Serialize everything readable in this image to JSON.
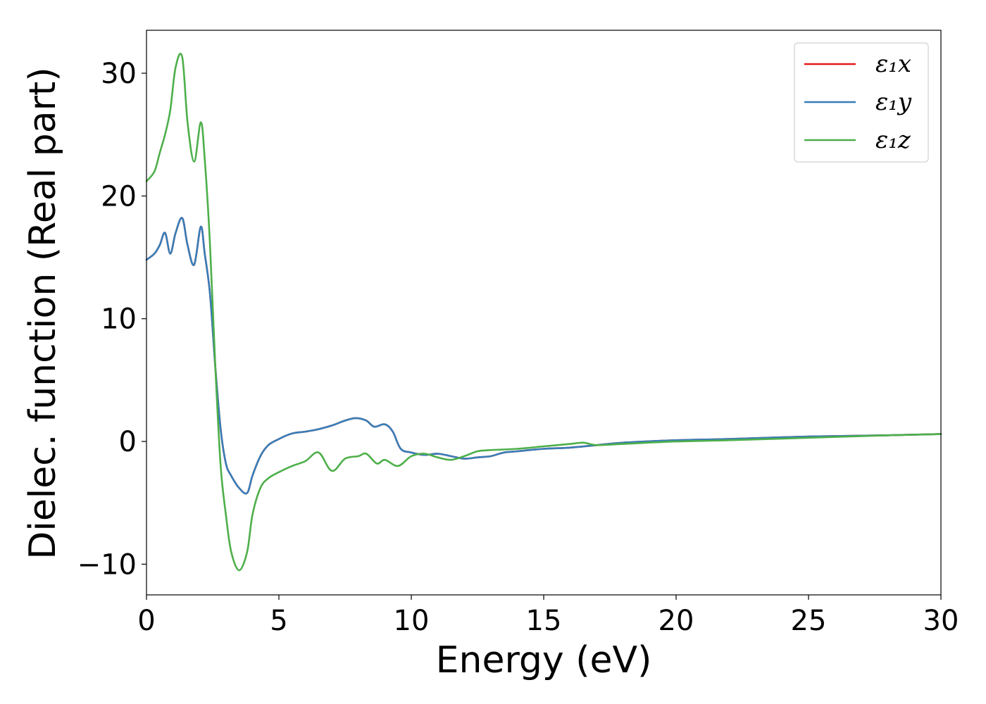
{
  "chart_data": {
    "type": "line",
    "xlabel": "Energy (eV)",
    "ylabel": "Dielec. function (Real part)",
    "xlim": [
      0,
      30
    ],
    "ylim": [
      -12.5,
      33.5
    ],
    "xticks": [
      0,
      5,
      10,
      15,
      20,
      25,
      30
    ],
    "xtick_labels": [
      "0",
      "5",
      "10",
      "15",
      "20",
      "25",
      "30"
    ],
    "yticks": [
      -10,
      0,
      10,
      20,
      30
    ],
    "ytick_labels": [
      "−10",
      "0",
      "10",
      "20",
      "30"
    ],
    "grid": false,
    "legend_position": "top-right",
    "series": [
      {
        "name": "ε₁x",
        "color": "#e41a1c",
        "x": [
          0,
          0.3,
          0.5,
          0.7,
          0.9,
          1.1,
          1.35,
          1.55,
          1.8,
          2.05,
          2.2,
          2.4,
          2.6,
          2.8,
          3.0,
          3.2,
          3.5,
          3.8,
          4.0,
          4.3,
          4.6,
          5.0,
          5.3,
          5.6,
          6.0,
          6.5,
          7.0,
          7.5,
          7.9,
          8.3,
          8.6,
          9.0,
          9.3,
          9.6,
          10.0,
          10.5,
          11.0,
          11.5,
          12.0,
          12.5,
          13.0,
          13.5,
          14.0,
          15.0,
          16.0,
          17.0,
          18.0,
          20.0,
          22.0,
          25.0,
          28.0,
          30.0
        ],
        "y": [
          14.8,
          15.3,
          16.0,
          17.0,
          15.3,
          17.0,
          18.2,
          16.0,
          14.4,
          17.5,
          15.3,
          12.0,
          6.0,
          1.0,
          -1.8,
          -2.8,
          -3.8,
          -4.2,
          -2.8,
          -1.2,
          -0.3,
          0.2,
          0.5,
          0.7,
          0.8,
          1.0,
          1.3,
          1.7,
          1.9,
          1.7,
          1.2,
          1.4,
          0.8,
          -0.6,
          -0.9,
          -1.1,
          -1.0,
          -1.2,
          -1.4,
          -1.3,
          -1.2,
          -0.9,
          -0.8,
          -0.6,
          -0.5,
          -0.3,
          -0.1,
          0.1,
          0.2,
          0.4,
          0.5,
          0.6
        ]
      },
      {
        "name": "ε₁y",
        "color": "#377eb8",
        "x": [
          0,
          0.3,
          0.5,
          0.7,
          0.9,
          1.1,
          1.35,
          1.55,
          1.8,
          2.05,
          2.2,
          2.4,
          2.6,
          2.8,
          3.0,
          3.2,
          3.5,
          3.8,
          4.0,
          4.3,
          4.6,
          5.0,
          5.3,
          5.6,
          6.0,
          6.5,
          7.0,
          7.5,
          7.9,
          8.3,
          8.6,
          9.0,
          9.3,
          9.6,
          10.0,
          10.5,
          11.0,
          11.5,
          12.0,
          12.5,
          13.0,
          13.5,
          14.0,
          15.0,
          16.0,
          17.0,
          18.0,
          20.0,
          22.0,
          25.0,
          28.0,
          30.0
        ],
        "y": [
          14.8,
          15.3,
          16.0,
          17.0,
          15.3,
          17.0,
          18.2,
          16.0,
          14.4,
          17.5,
          15.3,
          12.0,
          6.0,
          1.0,
          -1.8,
          -2.8,
          -3.8,
          -4.2,
          -2.8,
          -1.2,
          -0.3,
          0.2,
          0.5,
          0.7,
          0.8,
          1.0,
          1.3,
          1.7,
          1.9,
          1.7,
          1.2,
          1.4,
          0.8,
          -0.6,
          -0.9,
          -1.1,
          -1.0,
          -1.2,
          -1.4,
          -1.3,
          -1.2,
          -0.9,
          -0.8,
          -0.6,
          -0.5,
          -0.3,
          -0.1,
          0.1,
          0.2,
          0.4,
          0.5,
          0.6
        ]
      },
      {
        "name": "ε₁z",
        "color": "#4daf4a",
        "x": [
          0,
          0.3,
          0.5,
          0.7,
          0.9,
          1.1,
          1.35,
          1.55,
          1.8,
          2.05,
          2.2,
          2.4,
          2.6,
          2.8,
          3.0,
          3.2,
          3.5,
          3.8,
          4.0,
          4.3,
          4.6,
          5.0,
          5.5,
          6.0,
          6.5,
          7.0,
          7.5,
          8.0,
          8.3,
          8.7,
          9.0,
          9.5,
          10.0,
          10.5,
          11.0,
          11.5,
          12.0,
          12.5,
          13.0,
          14.0,
          15.0,
          16.0,
          16.5,
          17.0,
          18.0,
          20.0,
          22.0,
          25.0,
          28.0,
          30.0
        ],
        "y": [
          21.2,
          22.0,
          23.5,
          25.0,
          27.0,
          30.5,
          31.3,
          26.0,
          22.8,
          26.0,
          23.0,
          16.0,
          6.0,
          -2.0,
          -6.0,
          -9.0,
          -10.5,
          -9.0,
          -6.0,
          -3.8,
          -3.0,
          -2.5,
          -2.0,
          -1.6,
          -0.9,
          -2.4,
          -1.4,
          -1.2,
          -1.0,
          -1.8,
          -1.5,
          -2.0,
          -1.2,
          -1.0,
          -1.3,
          -1.5,
          -1.2,
          -0.8,
          -0.7,
          -0.6,
          -0.4,
          -0.2,
          -0.1,
          -0.3,
          -0.2,
          0.0,
          0.1,
          0.3,
          0.5,
          0.6
        ]
      }
    ]
  }
}
